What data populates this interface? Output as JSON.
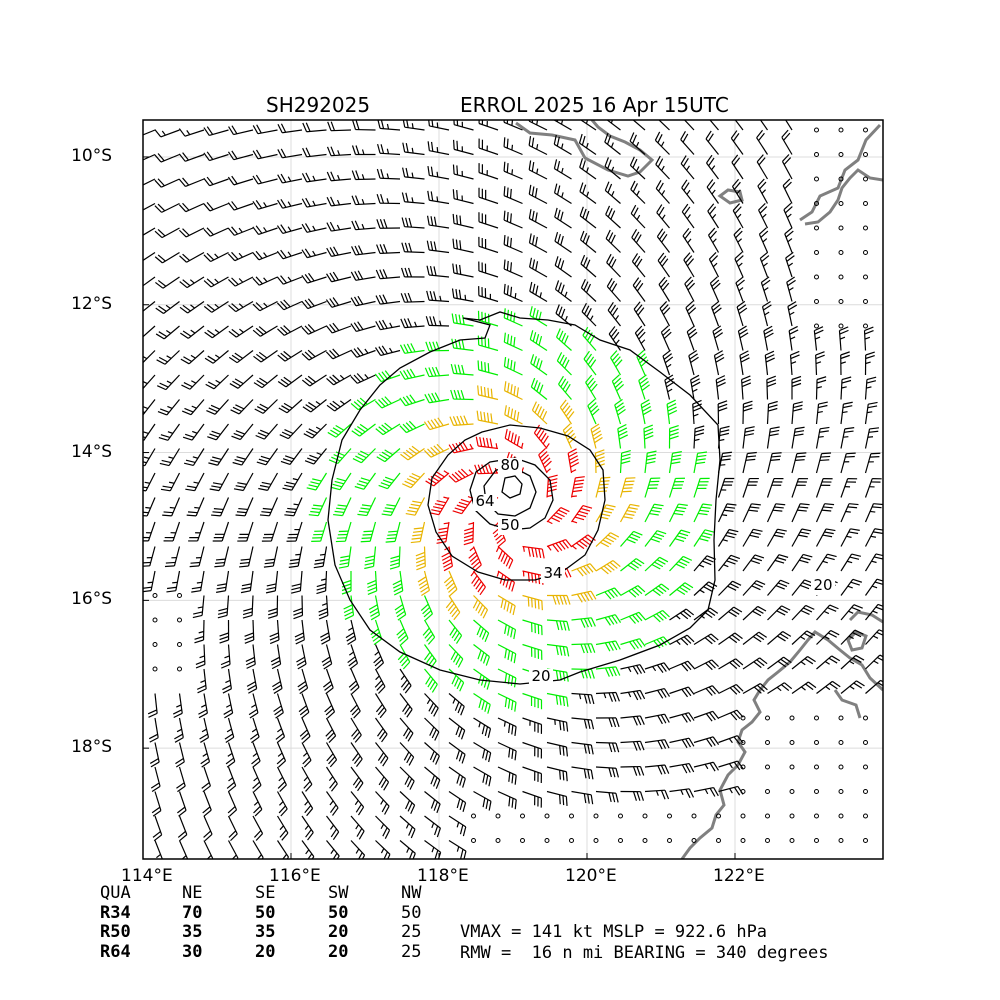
{
  "header": {
    "storm_id": "SH292025",
    "title": "ERROL 2025 16 Apr 15UTC"
  },
  "map": {
    "lon_range": [
      114,
      124
    ],
    "lat_range": [
      -19.5,
      -9.5
    ],
    "x_ticks": [
      {
        "value": 114,
        "label": "114°E"
      },
      {
        "value": 116,
        "label": "116°E"
      },
      {
        "value": 118,
        "label": "118°E"
      },
      {
        "value": 120,
        "label": "120°E"
      },
      {
        "value": 122,
        "label": "122°E"
      }
    ],
    "y_ticks": [
      {
        "value": -10,
        "label": "10°S"
      },
      {
        "value": -12,
        "label": "12°S"
      },
      {
        "value": -14,
        "label": "14°S"
      },
      {
        "value": -16,
        "label": "16°S"
      },
      {
        "value": -18,
        "label": "18°S"
      }
    ],
    "center": {
      "lon": 119.0,
      "lat": -14.75
    },
    "wind_colors": {
      "below34": "#000000",
      "34to50": "#00ee00",
      "50to64": "#e8b400",
      "above64": "#ee0000"
    },
    "coast_color": "#808080",
    "contour_labels": [
      "80",
      "64",
      "50",
      "34",
      "20",
      "20"
    ],
    "features": [
      "wind-barbs",
      "wind-speed-contours",
      "coastline",
      "grid"
    ]
  },
  "radii_table": {
    "header": [
      "QUA",
      "NE",
      "SE",
      "SW",
      "NW"
    ],
    "rows": [
      [
        "R34",
        "70",
        "50",
        "50",
        "50"
      ],
      [
        "R50",
        "35",
        "35",
        "20",
        "25"
      ],
      [
        "R64",
        "30",
        "20",
        "20",
        "25"
      ]
    ]
  },
  "stats": {
    "line1": "VMAX = 141 kt MSLP = 922.6 hPa",
    "line2": "RMW =  16 n mi BEARING = 340 degrees"
  }
}
